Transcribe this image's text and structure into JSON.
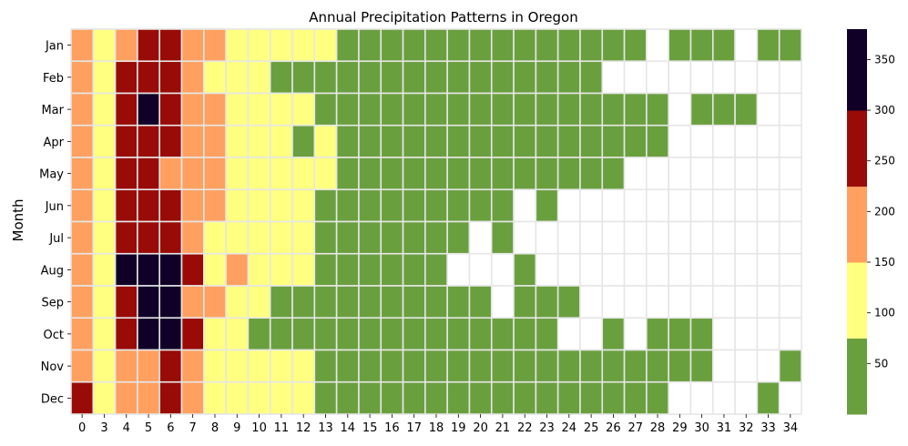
{
  "chart_data": {
    "type": "heatmap",
    "title": "Annual Precipitation Patterns in Oregon",
    "ylabel": "Month",
    "xlabel": "",
    "x_categories": [
      "0",
      "3",
      "4",
      "5",
      "6",
      "7",
      "8",
      "9",
      "10",
      "11",
      "12",
      "13",
      "14",
      "15",
      "16",
      "17",
      "18",
      "19",
      "20",
      "21",
      "22",
      "23",
      "24",
      "25",
      "26",
      "27",
      "28",
      "29",
      "30",
      "31",
      "32",
      "33",
      "34"
    ],
    "y_categories": [
      "Jan",
      "Feb",
      "Mar",
      "Apr",
      "May",
      "Jun",
      "Jul",
      "Aug",
      "Sep",
      "Oct",
      "Nov",
      "Dec"
    ],
    "value_bins": [
      {
        "range": [
          0,
          75
        ],
        "color": "#6a9f3e"
      },
      {
        "range": [
          75,
          150
        ],
        "color": "#ffff80"
      },
      {
        "range": [
          150,
          225
        ],
        "color": "#ffa060"
      },
      {
        "range": [
          225,
          300
        ],
        "color": "#990b06"
      },
      {
        "range": [
          300,
          380
        ],
        "color": "#100028"
      }
    ],
    "missing_color": "#ffffff",
    "colorbar_range": [
      0,
      380
    ],
    "colorbar_ticks": [
      "50",
      "100",
      "150",
      "200",
      "250",
      "300",
      "350"
    ],
    "values": [
      [
        200,
        100,
        200,
        275,
        275,
        200,
        200,
        100,
        100,
        100,
        100,
        100,
        50,
        50,
        50,
        50,
        50,
        50,
        50,
        50,
        50,
        50,
        50,
        50,
        50,
        50,
        null,
        50,
        50,
        50,
        null,
        50,
        50
      ],
      [
        200,
        100,
        275,
        275,
        275,
        200,
        100,
        100,
        100,
        50,
        50,
        50,
        50,
        50,
        50,
        50,
        50,
        50,
        50,
        50,
        50,
        50,
        50,
        50,
        null,
        null,
        null,
        null,
        null,
        null,
        null,
        null,
        null
      ],
      [
        200,
        100,
        275,
        340,
        275,
        200,
        200,
        100,
        100,
        100,
        100,
        50,
        50,
        50,
        50,
        50,
        50,
        50,
        50,
        50,
        50,
        50,
        50,
        50,
        50,
        50,
        50,
        null,
        50,
        50,
        50,
        null,
        null
      ],
      [
        200,
        100,
        275,
        275,
        275,
        200,
        200,
        100,
        100,
        100,
        50,
        100,
        50,
        50,
        50,
        50,
        50,
        50,
        50,
        50,
        50,
        50,
        50,
        50,
        50,
        50,
        50,
        null,
        null,
        null,
        null,
        null,
        null
      ],
      [
        200,
        100,
        275,
        275,
        200,
        200,
        200,
        100,
        100,
        100,
        100,
        100,
        50,
        50,
        50,
        50,
        50,
        50,
        50,
        50,
        50,
        50,
        50,
        50,
        50,
        null,
        null,
        null,
        null,
        null,
        null,
        null,
        null
      ],
      [
        200,
        100,
        275,
        275,
        275,
        200,
        200,
        100,
        100,
        100,
        100,
        50,
        50,
        50,
        50,
        50,
        50,
        50,
        50,
        50,
        null,
        50,
        null,
        null,
        null,
        null,
        null,
        null,
        null,
        null,
        null,
        null,
        null
      ],
      [
        200,
        100,
        275,
        275,
        275,
        200,
        100,
        100,
        100,
        100,
        100,
        50,
        50,
        50,
        50,
        50,
        50,
        50,
        null,
        50,
        null,
        null,
        null,
        null,
        null,
        null,
        null,
        null,
        null,
        null,
        null,
        null,
        null
      ],
      [
        200,
        100,
        340,
        340,
        340,
        275,
        100,
        200,
        100,
        100,
        100,
        50,
        50,
        50,
        50,
        50,
        50,
        null,
        null,
        null,
        50,
        null,
        null,
        null,
        null,
        null,
        null,
        null,
        null,
        null,
        null,
        null,
        null
      ],
      [
        200,
        100,
        275,
        340,
        340,
        200,
        200,
        100,
        100,
        50,
        50,
        50,
        50,
        50,
        50,
        50,
        50,
        50,
        50,
        null,
        50,
        50,
        50,
        null,
        null,
        null,
        null,
        null,
        null,
        null,
        null,
        null,
        null
      ],
      [
        200,
        100,
        275,
        340,
        340,
        275,
        100,
        100,
        50,
        50,
        50,
        50,
        50,
        50,
        50,
        50,
        50,
        50,
        50,
        50,
        50,
        50,
        null,
        null,
        50,
        null,
        50,
        50,
        50,
        null,
        null,
        null,
        null
      ],
      [
        200,
        100,
        200,
        200,
        275,
        200,
        100,
        100,
        100,
        100,
        100,
        50,
        50,
        50,
        50,
        50,
        50,
        50,
        50,
        50,
        50,
        50,
        50,
        50,
        50,
        50,
        50,
        50,
        50,
        null,
        null,
        null,
        50
      ],
      [
        275,
        100,
        200,
        200,
        275,
        200,
        100,
        100,
        100,
        100,
        100,
        50,
        50,
        50,
        50,
        50,
        50,
        50,
        50,
        50,
        50,
        50,
        50,
        50,
        50,
        50,
        50,
        null,
        null,
        null,
        null,
        50,
        null
      ]
    ]
  }
}
